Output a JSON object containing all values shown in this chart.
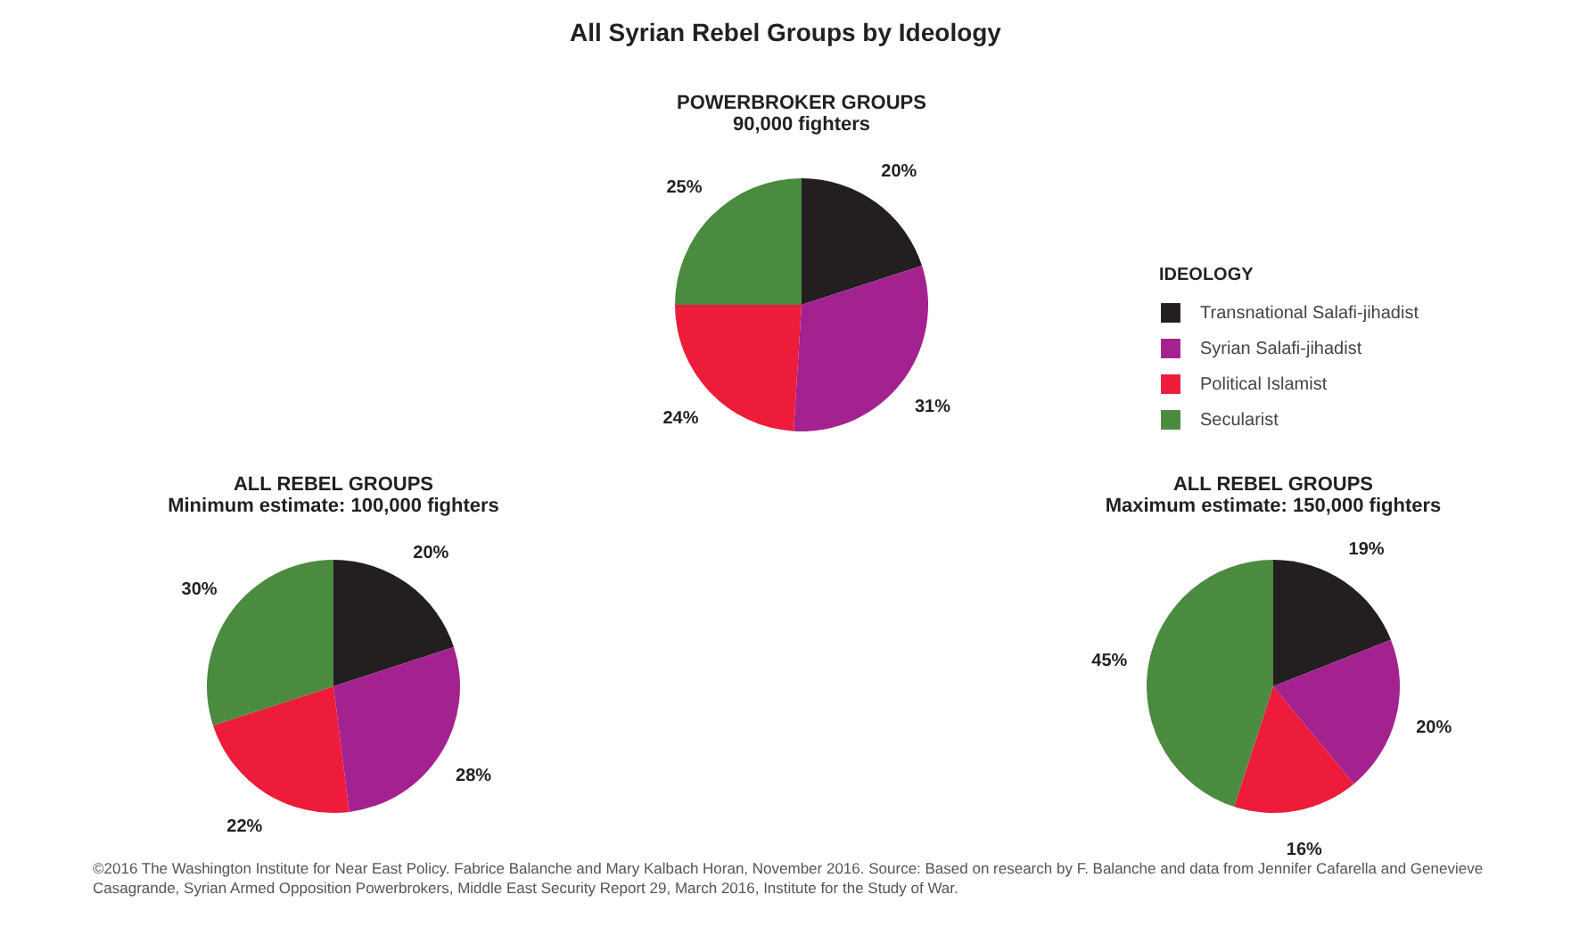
{
  "chart_data": [
    {
      "type": "pie",
      "title": "POWERBROKER GROUPS",
      "subtitle": "90,000 fighters",
      "categories": [
        "Transnational Salafi-jihadist",
        "Syrian Salafi-jihadist",
        "Political Islamist",
        "Secularist"
      ],
      "values": [
        20,
        31,
        24,
        25
      ],
      "value_labels": [
        "20%",
        "31%",
        "24%",
        "25%"
      ],
      "colors": [
        "#231f20",
        "#a3228f",
        "#ec1c3a",
        "#4a8b3f"
      ],
      "legend": "right",
      "legend_title": "IDEOLOGY",
      "annotations": [
        "All Syrian Rebel Groups by Ideology"
      ]
    },
    {
      "type": "pie",
      "title": "ALL REBEL GROUPS",
      "subtitle": "Minimum estimate: 100,000 fighters",
      "categories": [
        null,
        null,
        null,
        null
      ],
      "values": [
        20,
        28,
        22,
        30
      ],
      "value_labels": [
        "20%",
        "28%",
        "22%",
        "30%"
      ],
      "colors": [
        "#231f20",
        "#a3228f",
        "#ec1c3a",
        "#4a8b3f"
      ]
    },
    {
      "type": "pie",
      "title": "ALL REBEL GROUPS",
      "subtitle": "Maximum estimate: 150,000 fighters",
      "categories": [
        null,
        null,
        null,
        null
      ],
      "values": [
        19,
        20,
        16,
        45
      ],
      "value_labels": [
        "19%",
        "20%",
        "16%",
        "45%"
      ],
      "colors": [
        "#231f20",
        "#a3228f",
        "#ec1c3a",
        "#4a8b3f"
      ],
      "annotations": [
        "©2016 The Washington Institute for Near East Policy. Fabrice Balanche and Mary Kalbach Horan, November 2016. Source: Based on research by F. Balanche and data from Jennifer Cafarella and Genevieve Casagrande, Syrian Armed Opposition Powerbrokers, Middle East Security Report 29, March 2016, Institute for the Study of War."
      ]
    }
  ]
}
